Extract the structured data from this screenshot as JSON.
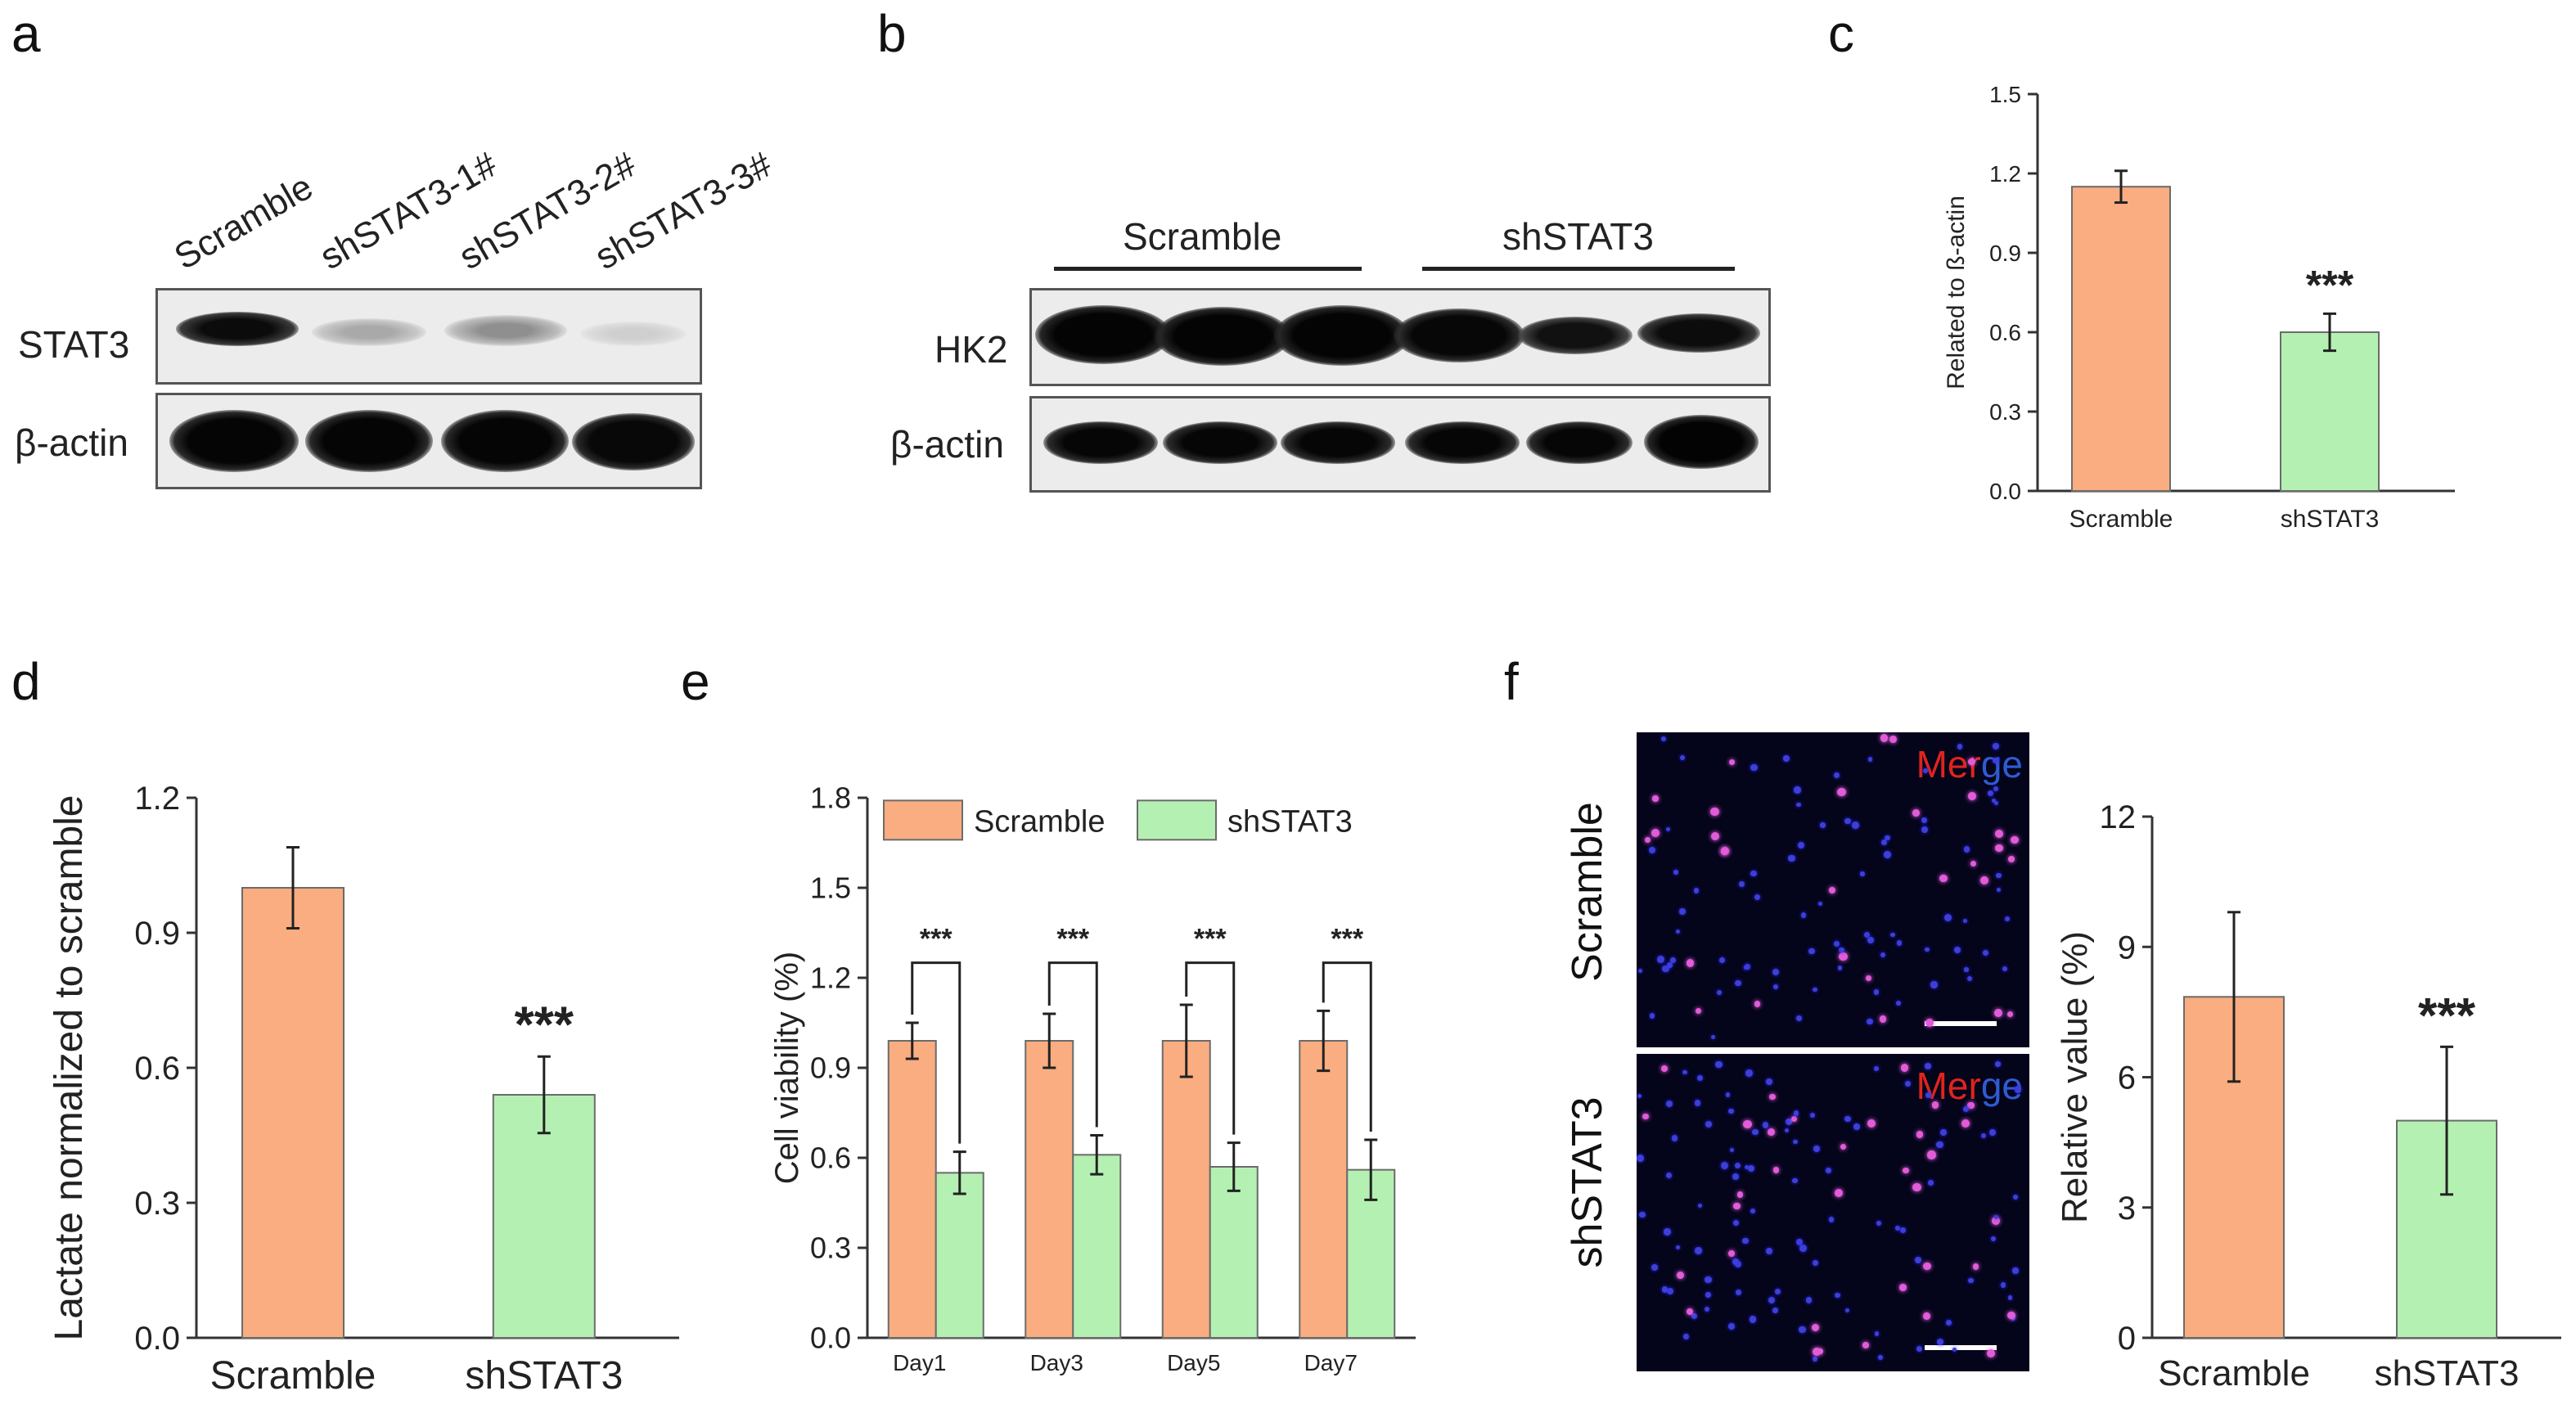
{
  "panel_labels": [
    "a",
    "b",
    "c",
    "d",
    "e",
    "f"
  ],
  "blot_a": {
    "lanes": [
      "Scramble",
      "shSTAT3-1#",
      "shSTAT3-2#",
      "shSTAT3-3#"
    ],
    "rows": [
      "STAT3",
      "β-actin"
    ]
  },
  "blot_b": {
    "groups": [
      "Scramble",
      "shSTAT3"
    ],
    "rows": [
      "HK2",
      "β-actin"
    ]
  },
  "fluor_f": {
    "row_labels": [
      "Scramble",
      "shSTAT3"
    ],
    "merge_label": [
      "Mer",
      "ge"
    ]
  },
  "colors": {
    "scramble": "#f9ad80",
    "shstat3": "#b5f0b3",
    "edge": "#6b6b6b"
  },
  "chart_data": [
    {
      "id": "c",
      "type": "bar",
      "categories": [
        "Scramble",
        "shSTAT3"
      ],
      "values": [
        1.15,
        0.6
      ],
      "errors": [
        0.06,
        0.07
      ],
      "annotations": [
        "",
        "***"
      ],
      "ylabel": "Related to ß-actin",
      "ylim": [
        0,
        1.5
      ],
      "yticks": [
        "0.0",
        "0.3",
        "0.6",
        "0.9",
        "1.2",
        "1.5"
      ]
    },
    {
      "id": "d",
      "type": "bar",
      "categories": [
        "Scramble",
        "shSTAT3"
      ],
      "values": [
        1.0,
        0.54
      ],
      "errors": [
        0.09,
        0.085
      ],
      "annotations": [
        "",
        "***"
      ],
      "ylabel": "Lactate normalized to scramble",
      "ylim": [
        0,
        1.2
      ],
      "yticks": [
        "0.0",
        "0.3",
        "0.6",
        "0.9",
        "1.2"
      ]
    },
    {
      "id": "e",
      "type": "bar",
      "categories": [
        "Day1",
        "Day3",
        "Day5",
        "Day7"
      ],
      "series": [
        {
          "name": "Scramble",
          "values": [
            0.99,
            0.99,
            0.99,
            0.99
          ],
          "errors": [
            0.06,
            0.09,
            0.12,
            0.1
          ]
        },
        {
          "name": "shSTAT3",
          "values": [
            0.55,
            0.61,
            0.57,
            0.56
          ],
          "errors": [
            0.07,
            0.065,
            0.08,
            0.1
          ]
        }
      ],
      "annotations": [
        "***",
        "***",
        "***",
        "***"
      ],
      "ylabel": "Cell viability (%)",
      "ylim": [
        0,
        1.8
      ],
      "yticks": [
        "0.0",
        "0.3",
        "0.6",
        "0.9",
        "1.2",
        "1.5",
        "1.8"
      ],
      "legend": "top"
    },
    {
      "id": "f",
      "type": "bar",
      "categories": [
        "Scramble",
        "shSTAT3"
      ],
      "values": [
        7.85,
        5.0
      ],
      "errors": [
        1.95,
        1.7
      ],
      "annotations": [
        "",
        "***"
      ],
      "ylabel": "Relative value (%)",
      "ylim": [
        0,
        12
      ],
      "yticks": [
        "0",
        "3",
        "6",
        "9",
        "12"
      ]
    }
  ]
}
